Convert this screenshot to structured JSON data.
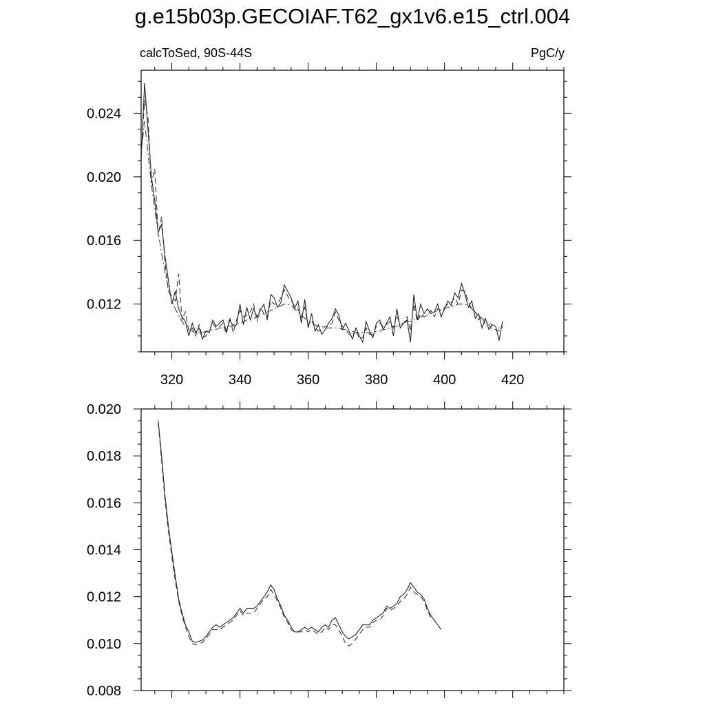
{
  "title": "g.e15b03p.GECOIAF.T62_gx1v6.e15_ctrl.004",
  "chart_data": [
    {
      "type": "line",
      "title": "g.e15b03p.GECOIAF.T62_gx1v6.e15_ctrl.004",
      "subtitle_left": "calcToSed, 90S-44S",
      "subtitle_right": "PgC/y",
      "xlabel": "",
      "ylabel": "",
      "xlim": [
        311,
        435
      ],
      "ylim": [
        0.009,
        0.0267
      ],
      "x_ticks": [
        320,
        340,
        360,
        380,
        400,
        420
      ],
      "y_ticks": [
        0.012,
        0.016,
        0.02,
        0.024
      ],
      "x_tick_labels": [
        "320",
        "340",
        "360",
        "380",
        "400",
        "420"
      ],
      "y_tick_labels": [
        "0.012",
        "0.016",
        "0.020",
        "0.024"
      ],
      "grid": false,
      "x_start": 311,
      "series": [
        {
          "style": "solid",
          "color": "#222222",
          "values": [
            0.021,
            0.0259,
            0.023,
            0.02,
            0.0185,
            0.0165,
            0.017,
            0.015,
            0.0135,
            0.012,
            0.0128,
            0.0117,
            0.0112,
            0.0109,
            0.01,
            0.0108,
            0.0102,
            0.0105,
            0.0098,
            0.0103,
            0.0102,
            0.011,
            0.0106,
            0.0108,
            0.011,
            0.0103,
            0.011,
            0.0106,
            0.0107,
            0.012,
            0.0107,
            0.0118,
            0.011,
            0.0117,
            0.0112,
            0.0116,
            0.012,
            0.011,
            0.0126,
            0.0124,
            0.0118,
            0.0121,
            0.0132,
            0.0128,
            0.0124,
            0.0117,
            0.0122,
            0.0108,
            0.0123,
            0.0105,
            0.0114,
            0.0103,
            0.0107,
            0.0101,
            0.0104,
            0.0108,
            0.0111,
            0.0117,
            0.0113,
            0.0104,
            0.0108,
            0.0103,
            0.0098,
            0.0105,
            0.01,
            0.0096,
            0.0109,
            0.0103,
            0.0099,
            0.0108,
            0.011,
            0.0104,
            0.0108,
            0.0112,
            0.01,
            0.0117,
            0.0105,
            0.0108,
            0.011,
            0.0096,
            0.0126,
            0.011,
            0.012,
            0.0114,
            0.0117,
            0.0114,
            0.0115,
            0.012,
            0.0112,
            0.0117,
            0.0122,
            0.0119,
            0.0127,
            0.0124,
            0.0133,
            0.0126,
            0.0118,
            0.0122,
            0.0111,
            0.0114,
            0.0105,
            0.0111,
            0.0104,
            0.0107,
            0.0106,
            0.0097,
            0.0109
          ]
        },
        {
          "style": "dashed",
          "color": "#333333",
          "values": [
            0.0214,
            0.0248,
            0.0238,
            0.0196,
            0.0205,
            0.0163,
            0.0175,
            0.0146,
            0.0128,
            0.0125,
            0.0122,
            0.0139,
            0.011,
            0.0115,
            0.0103,
            0.0105,
            0.01,
            0.0107,
            0.0099,
            0.01,
            0.0103,
            0.0108,
            0.0105,
            0.0106,
            0.0108,
            0.0101,
            0.0112,
            0.0102,
            0.011,
            0.0116,
            0.0112,
            0.0113,
            0.0115,
            0.012,
            0.0109,
            0.0118,
            0.0114,
            0.0112,
            0.0122,
            0.012,
            0.012,
            0.0124,
            0.0129,
            0.0125,
            0.0122,
            0.0119,
            0.0117,
            0.0112,
            0.0118,
            0.0107,
            0.011,
            0.0105,
            0.0103,
            0.0104,
            0.0106,
            0.0106,
            0.0108,
            0.0115,
            0.011,
            0.0106,
            0.0104,
            0.0101,
            0.01,
            0.0104,
            0.0098,
            0.0099,
            0.0105,
            0.0101,
            0.0101,
            0.0106,
            0.0108,
            0.0106,
            0.0107,
            0.0109,
            0.0105,
            0.0113,
            0.0107,
            0.0108,
            0.0112,
            0.0103,
            0.012,
            0.0109,
            0.0114,
            0.0112,
            0.0113,
            0.0116,
            0.0112,
            0.0117,
            0.0116,
            0.0118,
            0.012,
            0.0121,
            0.0124,
            0.012,
            0.0129,
            0.0128,
            0.0121,
            0.0117,
            0.0115,
            0.011,
            0.0112,
            0.0107,
            0.0107,
            0.0104,
            0.0104,
            0.0103,
            0.0106
          ]
        },
        {
          "style": "dashdot",
          "color": "#444444",
          "values": [
            0.0215,
            0.0235,
            0.0215,
            0.0195,
            0.018,
            0.0165,
            0.0152,
            0.014,
            0.013,
            0.0122,
            0.0117,
            0.0113,
            0.0109,
            0.0106,
            0.0104,
            0.0103,
            0.0102,
            0.0102,
            0.0102,
            0.0103,
            0.0103,
            0.0104,
            0.0104,
            0.0105,
            0.0105,
            0.0106,
            0.0106,
            0.0107,
            0.0108,
            0.0108,
            0.0109,
            0.011,
            0.0111,
            0.0111,
            0.0112,
            0.0113,
            0.0114,
            0.0115,
            0.0116,
            0.0117,
            0.0118,
            0.0119,
            0.012,
            0.012,
            0.0119,
            0.0117,
            0.0115,
            0.0113,
            0.0111,
            0.011,
            0.0108,
            0.0107,
            0.0106,
            0.0106,
            0.0105,
            0.0105,
            0.0105,
            0.0105,
            0.0105,
            0.0104,
            0.0104,
            0.0103,
            0.0103,
            0.0102,
            0.0102,
            0.0102,
            0.0102,
            0.0102,
            0.0102,
            0.0103,
            0.0103,
            0.0104,
            0.0104,
            0.0105,
            0.0106,
            0.0106,
            0.0107,
            0.0108,
            0.0109,
            0.0109,
            0.011,
            0.0111,
            0.0112,
            0.0113,
            0.0113,
            0.0114,
            0.0115,
            0.0116,
            0.0116,
            0.0117,
            0.0118,
            0.0118,
            0.0119,
            0.012,
            0.012,
            0.012,
            0.0119,
            0.0117,
            0.0115,
            0.0113,
            0.0111,
            0.0109,
            0.0108,
            0.0107,
            0.0106,
            0.0105,
            0.0105
          ]
        }
      ]
    },
    {
      "type": "line",
      "xlabel": "",
      "ylabel": "",
      "xlim": [
        311,
        435
      ],
      "ylim": [
        0.008,
        0.02
      ],
      "x_ticks": [
        320,
        340,
        360,
        380,
        400,
        420
      ],
      "y_ticks": [
        0.008,
        0.01,
        0.012,
        0.014,
        0.016,
        0.018,
        0.02
      ],
      "y_tick_labels": [
        "0.008",
        "0.010",
        "0.012",
        "0.014",
        "0.016",
        "0.018",
        "0.020"
      ],
      "grid": false,
      "x_start": 316,
      "series": [
        {
          "style": "solid",
          "color": "#222222",
          "values": [
            0.0195,
            0.018,
            0.0163,
            0.015,
            0.0139,
            0.0129,
            0.0119,
            0.0113,
            0.0108,
            0.0105,
            0.0101,
            0.01005,
            0.0101,
            0.01015,
            0.0103,
            0.0105,
            0.0107,
            0.0108,
            0.0107,
            0.0108,
            0.0109,
            0.011,
            0.0111,
            0.0113,
            0.0115,
            0.0113,
            0.0115,
            0.0115,
            0.0115,
            0.0116,
            0.0118,
            0.012,
            0.0122,
            0.0125,
            0.0123,
            0.0119,
            0.0116,
            0.0112,
            0.011,
            0.0107,
            0.0105,
            0.0105,
            0.0106,
            0.0107,
            0.0106,
            0.0107,
            0.0106,
            0.0105,
            0.0107,
            0.0108,
            0.0107,
            0.011,
            0.0111,
            0.0108,
            0.0105,
            0.0103,
            0.0102,
            0.0103,
            0.0104,
            0.0106,
            0.0108,
            0.0108,
            0.0108,
            0.011,
            0.0111,
            0.0112,
            0.0113,
            0.0116,
            0.0115,
            0.0116,
            0.0117,
            0.012,
            0.0121,
            0.0123,
            0.0126,
            0.0124,
            0.0122,
            0.0121,
            0.0119,
            0.0115,
            0.0112,
            0.011,
            0.0108,
            0.0106
          ]
        },
        {
          "style": "dashed",
          "color": "#333333",
          "values": [
            0.0194,
            0.0178,
            0.0161,
            0.0148,
            0.0137,
            0.0127,
            0.0118,
            0.0112,
            0.0107,
            0.0103,
            0.01,
            0.00995,
            0.01,
            0.01005,
            0.0102,
            0.0104,
            0.0106,
            0.0106,
            0.0106,
            0.0107,
            0.0108,
            0.0109,
            0.011,
            0.0112,
            0.0114,
            0.0112,
            0.0113,
            0.0113,
            0.0113,
            0.0115,
            0.0117,
            0.0119,
            0.012,
            0.0123,
            0.0121,
            0.0118,
            0.0115,
            0.0111,
            0.0109,
            0.0106,
            0.0105,
            0.0105,
            0.0105,
            0.0106,
            0.0105,
            0.0106,
            0.0105,
            0.0104,
            0.0105,
            0.0107,
            0.0106,
            0.0108,
            0.0108,
            0.0106,
            0.0103,
            0.01,
            0.0099,
            0.01,
            0.0102,
            0.0104,
            0.0106,
            0.0107,
            0.0107,
            0.0109,
            0.011,
            0.011,
            0.0112,
            0.0115,
            0.0114,
            0.0115,
            0.0116,
            0.0118,
            0.0119,
            0.0121,
            0.0124,
            0.0122,
            0.0121,
            0.012,
            0.0118,
            0.0114,
            0.0111,
            0.011,
            0.0108,
            0.0106
          ]
        }
      ]
    }
  ]
}
